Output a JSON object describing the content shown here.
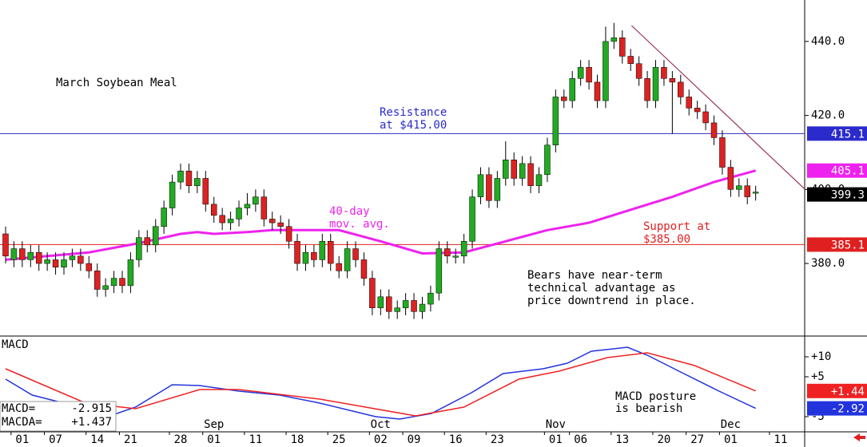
{
  "chart_data": [
    {
      "type": "candlestick",
      "title": "March Soybean Meal",
      "up_color": "#22aa22",
      "down_color": "#dd2222",
      "xlim": [
        -0.67,
        95.88
      ],
      "ylim": [
        360.6,
        451.2
      ],
      "yticks": [
        {
          "value": 380,
          "label": "380.0"
        },
        {
          "value": 400,
          "label": "400.0"
        },
        {
          "value": 420,
          "label": "420.0"
        },
        {
          "value": 440,
          "label": "440.0"
        }
      ],
      "open": [
        388,
        381,
        384,
        381,
        383,
        380,
        381,
        379,
        381,
        382,
        380,
        378,
        373,
        374,
        376,
        374,
        381,
        387,
        385,
        390,
        395,
        402,
        405,
        401,
        403,
        396,
        393,
        391,
        392,
        395,
        396,
        398,
        392,
        391,
        390,
        386,
        380,
        383,
        381,
        386,
        380,
        378,
        384,
        381,
        376,
        368,
        371,
        367,
        368,
        370,
        367,
        369,
        372,
        384,
        382,
        382,
        386,
        398,
        404,
        397,
        403,
        408,
        403,
        407,
        401,
        404,
        412,
        425,
        424,
        430,
        433,
        429,
        424,
        440,
        441,
        436,
        434,
        430,
        424,
        433,
        430,
        429,
        425,
        422,
        421,
        418,
        414,
        406,
        400,
        401,
        399
      ],
      "high": [
        390,
        386,
        386,
        385,
        385,
        383,
        383,
        383,
        384,
        384,
        382,
        380,
        376,
        378,
        378,
        383,
        389,
        389,
        392,
        397,
        404,
        407,
        407,
        405,
        405,
        398,
        395,
        394,
        397,
        399,
        400,
        400,
        394,
        393,
        392,
        388,
        385,
        385,
        388,
        388,
        382,
        386,
        386,
        383,
        378,
        373,
        373,
        370,
        372,
        372,
        371,
        374,
        386,
        386,
        384,
        388,
        400,
        406,
        406,
        405,
        413,
        410,
        409,
        409,
        406,
        414,
        427,
        427,
        432,
        435,
        435,
        431,
        444,
        445,
        443,
        438,
        436,
        432,
        435,
        435,
        432,
        431,
        427,
        424,
        423,
        420,
        416,
        408,
        403,
        403,
        401
      ],
      "low": [
        380,
        379,
        379,
        379,
        378,
        378,
        377,
        377,
        379,
        378,
        376,
        371,
        371,
        372,
        372,
        372,
        379,
        383,
        383,
        388,
        393,
        400,
        399,
        399,
        394,
        391,
        389,
        389,
        390,
        393,
        394,
        390,
        389,
        388,
        384,
        378,
        378,
        379,
        379,
        378,
        376,
        376,
        379,
        374,
        366,
        366,
        365,
        365,
        366,
        365,
        365,
        367,
        370,
        380,
        380,
        380,
        384,
        396,
        395,
        395,
        401,
        401,
        401,
        399,
        399,
        402,
        410,
        422,
        422,
        428,
        427,
        422,
        422,
        438,
        434,
        432,
        428,
        422,
        422,
        428,
        415,
        423,
        420,
        419,
        416,
        412,
        404,
        398,
        398,
        396,
        397
      ],
      "close": [
        382,
        384,
        381,
        383,
        380,
        381,
        379,
        381,
        382,
        380,
        378,
        373,
        374,
        376,
        374,
        381,
        387,
        385,
        390,
        395,
        402,
        405,
        401,
        403,
        396,
        393,
        391,
        392,
        395,
        396,
        398,
        392,
        391,
        390,
        386,
        380,
        383,
        381,
        386,
        380,
        378,
        384,
        381,
        376,
        368,
        371,
        367,
        368,
        370,
        367,
        369,
        372,
        384,
        382,
        382,
        386,
        398,
        404,
        397,
        403,
        408,
        403,
        407,
        401,
        404,
        412,
        425,
        424,
        430,
        433,
        429,
        424,
        440,
        441,
        436,
        434,
        430,
        424,
        433,
        430,
        429,
        425,
        422,
        421,
        418,
        414,
        406,
        400,
        401,
        398,
        399.3
      ],
      "ma": {
        "color": "#ee22ee",
        "text": [
          "40-day",
          "mov. avg."
        ],
        "x": [
          0,
          10,
          16,
          21,
          23,
          25,
          29,
          32,
          40,
          45,
          50,
          55,
          60,
          65,
          70,
          75,
          80,
          85,
          90
        ],
        "values": [
          381,
          383,
          385.5,
          388,
          388.5,
          388,
          388.5,
          389,
          389,
          386,
          382.7,
          383,
          386,
          389,
          391,
          394.5,
          398,
          402,
          405.1
        ]
      },
      "levels": [
        {
          "value": 415.1,
          "color": "#2b2bcc",
          "text": [
            "Resistance",
            "at $415.00"
          ]
        },
        {
          "value": 385.1,
          "color": "#e02020",
          "text": [
            "Support at",
            "$385.00"
          ]
        }
      ],
      "trendline": {
        "color": "#993355",
        "x": [
          75.1,
          95.9
        ],
        "values": [
          444.3,
          400.1
        ]
      },
      "annotation": [
        "Bears have near-term",
        "technical advantage as",
        "price downtrend in place."
      ]
    },
    {
      "type": "line",
      "title": "MACD",
      "xlim": [
        -0.67,
        95.88
      ],
      "ylim": [
        -8.6,
        15
      ],
      "yticks": [
        {
          "value": 10,
          "label": "+10"
        },
        {
          "value": 5,
          "label": "+5"
        },
        {
          "value": -5,
          "label": "-5"
        }
      ],
      "xticks": [
        {
          "value": 2,
          "label": "01"
        },
        {
          "value": 6,
          "label": "07"
        },
        {
          "value": 11,
          "label": "14"
        },
        {
          "value": 15,
          "label": "21"
        },
        {
          "value": 21,
          "label": "28"
        },
        {
          "value": 25,
          "label": "01"
        },
        {
          "value": 30,
          "label": "11"
        },
        {
          "value": 35,
          "label": "18"
        },
        {
          "value": 40,
          "label": "25"
        },
        {
          "value": 45,
          "label": "02"
        },
        {
          "value": 49,
          "label": "09"
        },
        {
          "value": 54,
          "label": "16"
        },
        {
          "value": 59,
          "label": "23"
        },
        {
          "value": 66,
          "label": "01"
        },
        {
          "value": 69,
          "label": "06"
        },
        {
          "value": 74,
          "label": "13"
        },
        {
          "value": 79,
          "label": "20"
        },
        {
          "value": 83,
          "label": "27"
        },
        {
          "value": 87,
          "label": "01"
        },
        {
          "value": 93,
          "label": "11"
        }
      ],
      "month_ticks": [
        {
          "value": 25,
          "label": "Sep"
        },
        {
          "value": 45,
          "label": "Oct"
        },
        {
          "value": 66,
          "label": "Nov"
        },
        {
          "value": 87,
          "label": "Dec"
        }
      ],
      "series": [
        {
          "name": "MACD=",
          "color": "#2233dd",
          "x": [
            0,
            3.2,
            7,
            12.8,
            15.6,
            20,
            23.3,
            28,
            32.9,
            37.7,
            44.4,
            47.3,
            51.1,
            55.9,
            59.7,
            64.5,
            67.4,
            70.3,
            74.6,
            77,
            80.8,
            85.6,
            90
          ],
          "values": [
            4.4,
            0.4,
            -1.6,
            -4.6,
            -2.6,
            3,
            2.8,
            1.4,
            0.4,
            -1.6,
            -5,
            -5.6,
            -4.2,
            1,
            5.8,
            7,
            8.4,
            11.4,
            12.4,
            10.4,
            6.4,
            1.4,
            -2.915
          ],
          "value_labels": [
            null,
            null,
            null,
            null,
            null,
            null,
            null,
            null,
            null,
            null,
            null,
            null,
            null,
            null,
            null,
            null,
            null,
            null,
            null,
            null,
            null,
            null,
            "-2.915"
          ],
          "axis_label": {
            "value": -2.92,
            "label": "-2.92"
          }
        },
        {
          "name": "MACDA=",
          "color": "#ee2222",
          "x": [
            0,
            9.6,
            15.6,
            23.3,
            28,
            37.7,
            49.2,
            55,
            61.6,
            66.4,
            72.2,
            77,
            82.7,
            90
          ],
          "values": [
            7,
            -1.6,
            -3,
            1.8,
            1.8,
            -0.6,
            -4.8,
            -2.6,
            4.4,
            6.4,
            9.8,
            11,
            7.8,
            1.437
          ],
          "value_labels": [
            null,
            null,
            null,
            null,
            null,
            null,
            null,
            null,
            null,
            null,
            null,
            null,
            null,
            "+1.437"
          ],
          "axis_label": {
            "value": 1.44,
            "label": "+1.44"
          }
        }
      ],
      "annotation": [
        "MACD posture",
        "is bearish"
      ]
    }
  ]
}
